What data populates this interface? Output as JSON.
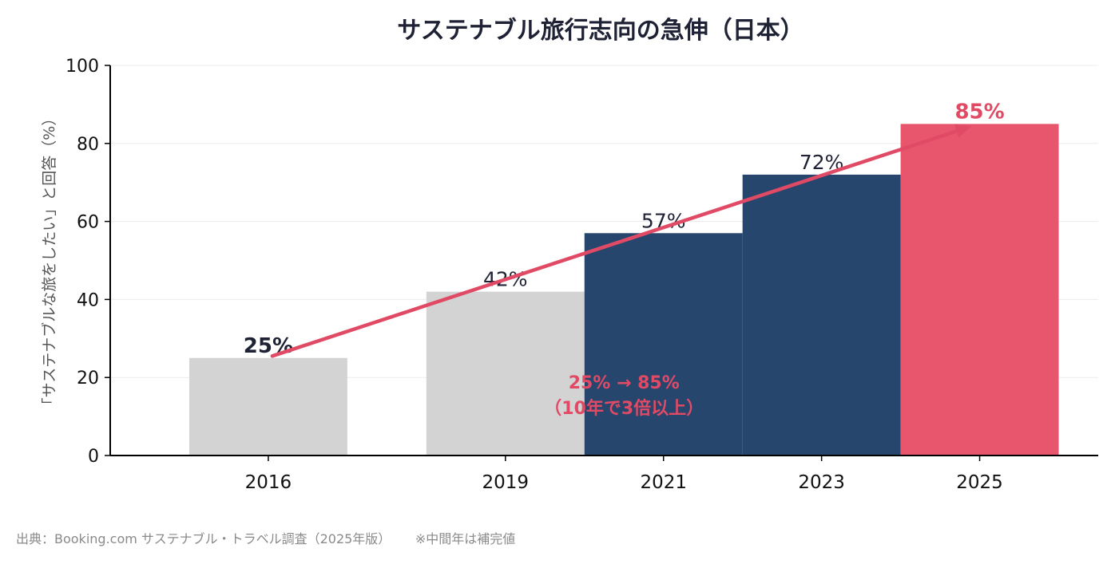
{
  "chart_data": {
    "type": "bar",
    "title": "サステナブル旅行志向の急伸（日本）",
    "ylabel": "「サステナブルな旅をしたい」と回答（%）",
    "xlabel": "",
    "ylim": [
      0,
      100
    ],
    "xlim": [
      2014,
      2026.5
    ],
    "yticks": [
      0,
      20,
      40,
      60,
      80,
      100
    ],
    "grid": "horizontal",
    "categories": [
      "2016",
      "2019",
      "2021",
      "2023",
      "2025"
    ],
    "x": [
      2016,
      2019,
      2021,
      2023,
      2025
    ],
    "values": [
      25,
      42,
      57,
      72,
      85
    ],
    "data_labels": [
      "25%",
      "42%",
      "57%",
      "72%",
      "85%"
    ],
    "bar_colors": [
      "#d3d3d3",
      "#d3d3d3",
      "#27466e",
      "#27466e",
      "#e8566e"
    ],
    "annotation": {
      "arrow_from": [
        2016,
        25.5
      ],
      "arrow_to": [
        2025,
        84.5
      ],
      "arrow_color": "#e04a65",
      "text_line1": "25% → 85%",
      "text_line2": "（10年で3倍以上）",
      "text_color": "#e04a65"
    }
  },
  "footer": {
    "source": "出典：Booking.com サステナブル・トラベル調査（2025年版）",
    "note": "※中間年は補完値"
  }
}
